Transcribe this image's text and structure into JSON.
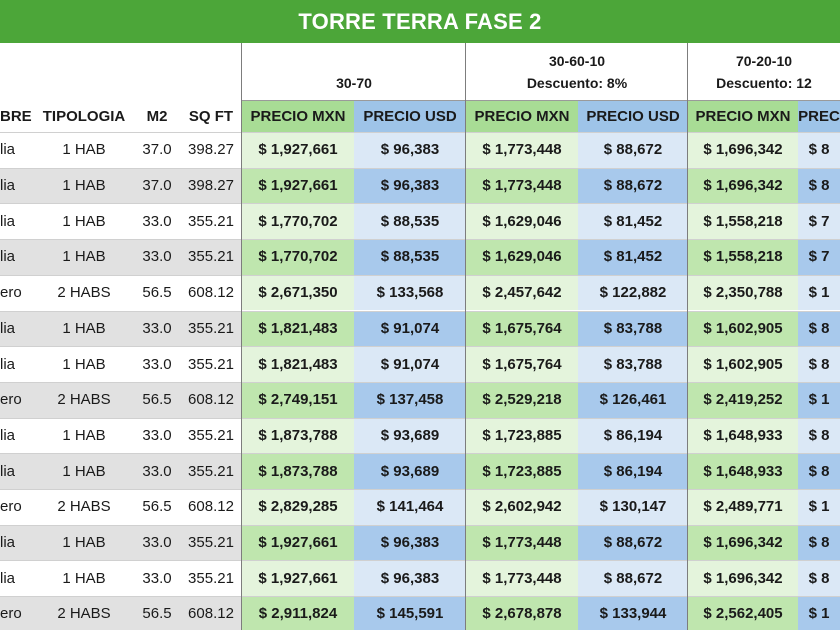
{
  "title": "TORRE TERRA FASE 2",
  "groups": [
    {
      "line1": "",
      "line2": "30-70"
    },
    {
      "line1": "30-60-10",
      "line2": "Descuento: 8%"
    },
    {
      "line1": "70-20-10",
      "line2": "Descuento: 12"
    }
  ],
  "columns": [
    "BRE",
    "TIPOLOGIA",
    "M2",
    "SQ FT",
    "PRECIO MXN",
    "PRECIO USD",
    "PRECIO MXN",
    "PRECIO USD",
    "PRECIO MXN",
    "PREC"
  ],
  "rows": [
    [
      "lia",
      "1 HAB",
      "37.0",
      "398.27",
      "$ 1,927,661",
      "$ 96,383",
      "$ 1,773,448",
      "$ 88,672",
      "$ 1,696,342",
      "$ 8"
    ],
    [
      "lia",
      "1 HAB",
      "37.0",
      "398.27",
      "$ 1,927,661",
      "$ 96,383",
      "$ 1,773,448",
      "$ 88,672",
      "$ 1,696,342",
      "$ 8"
    ],
    [
      "lia",
      "1 HAB",
      "33.0",
      "355.21",
      "$ 1,770,702",
      "$ 88,535",
      "$ 1,629,046",
      "$ 81,452",
      "$ 1,558,218",
      "$ 7"
    ],
    [
      "lia",
      "1 HAB",
      "33.0",
      "355.21",
      "$ 1,770,702",
      "$ 88,535",
      "$ 1,629,046",
      "$ 81,452",
      "$ 1,558,218",
      "$ 7"
    ],
    [
      "ero",
      "2 HABS",
      "56.5",
      "608.12",
      "$ 2,671,350",
      "$ 133,568",
      "$ 2,457,642",
      "$ 122,882",
      "$ 2,350,788",
      "$ 1"
    ],
    [
      "lia",
      "1 HAB",
      "33.0",
      "355.21",
      "$ 1,821,483",
      "$ 91,074",
      "$ 1,675,764",
      "$ 83,788",
      "$ 1,602,905",
      "$ 8"
    ],
    [
      "lia",
      "1 HAB",
      "33.0",
      "355.21",
      "$ 1,821,483",
      "$ 91,074",
      "$ 1,675,764",
      "$ 83,788",
      "$ 1,602,905",
      "$ 8"
    ],
    [
      "ero",
      "2 HABS",
      "56.5",
      "608.12",
      "$ 2,749,151",
      "$ 137,458",
      "$ 2,529,218",
      "$ 126,461",
      "$ 2,419,252",
      "$ 1"
    ],
    [
      "lia",
      "1 HAB",
      "33.0",
      "355.21",
      "$ 1,873,788",
      "$ 93,689",
      "$ 1,723,885",
      "$ 86,194",
      "$ 1,648,933",
      "$ 8"
    ],
    [
      "lia",
      "1 HAB",
      "33.0",
      "355.21",
      "$ 1,873,788",
      "$ 93,689",
      "$ 1,723,885",
      "$ 86,194",
      "$ 1,648,933",
      "$ 8"
    ],
    [
      "ero",
      "2 HABS",
      "56.5",
      "608.12",
      "$ 2,829,285",
      "$ 141,464",
      "$ 2,602,942",
      "$ 130,147",
      "$ 2,489,771",
      "$ 1"
    ],
    [
      "lia",
      "1 HAB",
      "33.0",
      "355.21",
      "$ 1,927,661",
      "$ 96,383",
      "$ 1,773,448",
      "$ 88,672",
      "$ 1,696,342",
      "$ 8"
    ],
    [
      "lia",
      "1 HAB",
      "33.0",
      "355.21",
      "$ 1,927,661",
      "$ 96,383",
      "$ 1,773,448",
      "$ 88,672",
      "$ 1,696,342",
      "$ 8"
    ],
    [
      "ero",
      "2 HABS",
      "56.5",
      "608.12",
      "$ 2,911,824",
      "$ 145,591",
      "$ 2,678,878",
      "$ 133,944",
      "$ 2,562,405",
      "$ 1"
    ]
  ],
  "colors": {
    "title_bg": "#4ca639",
    "mxn_header": "#a8dc95",
    "usd_header": "#9ec4e8",
    "mxn_light": "#e4f4dc",
    "mxn_dark": "#bfe6ae",
    "usd_light": "#dbe8f6",
    "usd_dark": "#a8c9ec",
    "row_light": "#ffffff",
    "row_dark": "#e1e1e1"
  }
}
